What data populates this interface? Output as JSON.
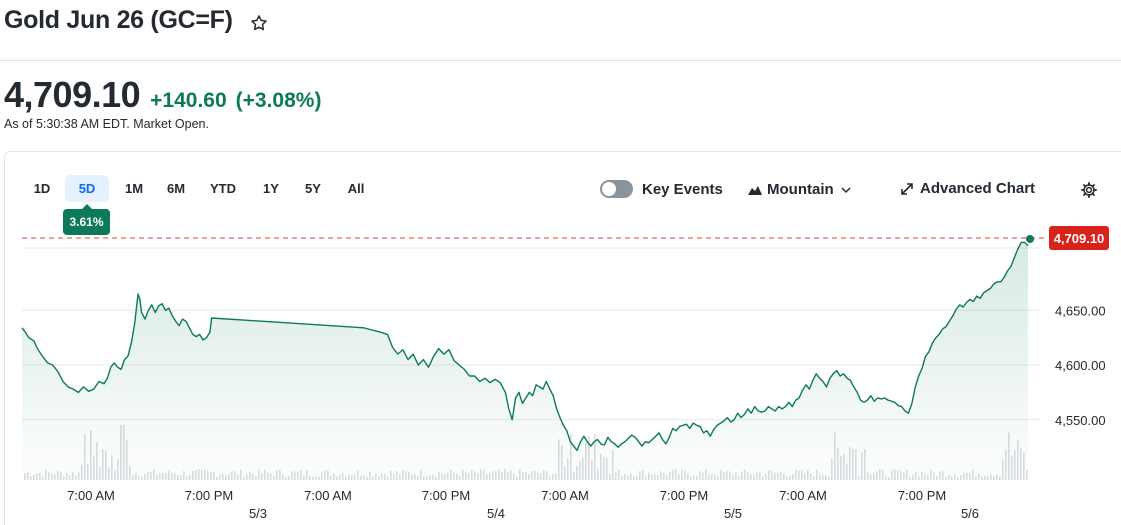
{
  "header": {
    "title": "Gold Jun 26 (GC=F)",
    "star_icon": "star-outline-icon"
  },
  "quote": {
    "price": "4,709.10",
    "change": "+140.60",
    "change_pct": "(+3.08%)",
    "as_of": "As of 5:30:38 AM EDT. Market Open.",
    "color_positive": "#0c7a5a"
  },
  "toolbar": {
    "ranges": [
      "1D",
      "5D",
      "1M",
      "6M",
      "YTD",
      "1Y",
      "5Y",
      "All"
    ],
    "active_range": "5D",
    "performance_badge": "3.61%",
    "key_events_label": "Key Events",
    "key_events_enabled": false,
    "chart_type_label": "Mountain",
    "advanced_chart_label": "Advanced Chart",
    "icons": [
      "mountain-icon",
      "chevron-down-icon",
      "expand-arrow-icon",
      "gear-icon"
    ]
  },
  "chart_data": {
    "type": "area",
    "series_color": "#0c7a5a",
    "current_price_label": "4,709.10",
    "current_price_color": "#d8231a",
    "y_ticks": [
      "4,650.00",
      "4,600.00",
      "4,550.00"
    ],
    "y_tick_values": [
      4650,
      4600,
      4550
    ],
    "ylim": [
      4495,
      4727
    ],
    "x_time_labels": [
      "7:00 AM",
      "7:00 PM",
      "7:00 AM",
      "7:00 PM",
      "7:00 AM",
      "7:00 PM",
      "7:00 AM",
      "7:00 PM"
    ],
    "x_date_labels": [
      "5/3",
      "5/4",
      "5/5",
      "5/6"
    ],
    "grid": true,
    "points": [
      [
        0,
        4634
      ],
      [
        2,
        4630
      ],
      [
        4,
        4625
      ],
      [
        7,
        4622
      ],
      [
        9,
        4615
      ],
      [
        12,
        4608
      ],
      [
        15,
        4602
      ],
      [
        18,
        4600
      ],
      [
        21,
        4594
      ],
      [
        24,
        4585
      ],
      [
        27,
        4580
      ],
      [
        30,
        4578
      ],
      [
        33,
        4575
      ],
      [
        36,
        4580
      ],
      [
        39,
        4576
      ],
      [
        42,
        4578
      ],
      [
        45,
        4585
      ],
      [
        48,
        4583
      ],
      [
        50,
        4588
      ],
      [
        52,
        4598
      ],
      [
        54,
        4602
      ],
      [
        56,
        4598
      ],
      [
        58,
        4596
      ],
      [
        60,
        4605
      ],
      [
        62,
        4608
      ],
      [
        64,
        4620
      ],
      [
        66,
        4638
      ],
      [
        67,
        4652
      ],
      [
        68,
        4665
      ],
      [
        69,
        4660
      ],
      [
        70,
        4648
      ],
      [
        72,
        4642
      ],
      [
        74,
        4650
      ],
      [
        76,
        4655
      ],
      [
        78,
        4648
      ],
      [
        80,
        4654
      ],
      [
        82,
        4656
      ],
      [
        84,
        4650
      ],
      [
        86,
        4652
      ],
      [
        88,
        4645
      ],
      [
        90,
        4640
      ],
      [
        92,
        4636
      ],
      [
        94,
        4642
      ],
      [
        96,
        4640
      ],
      [
        98,
        4634
      ],
      [
        100,
        4628
      ],
      [
        102,
        4626
      ],
      [
        104,
        4628
      ],
      [
        106,
        4623
      ],
      [
        108,
        4625
      ],
      [
        110,
        4630
      ],
      [
        111,
        4643
      ],
      [
        200,
        4634
      ],
      [
        205,
        4632
      ],
      [
        210,
        4630
      ],
      [
        214,
        4628
      ],
      [
        217,
        4616
      ],
      [
        220,
        4610
      ],
      [
        223,
        4614
      ],
      [
        226,
        4605
      ],
      [
        229,
        4610
      ],
      [
        232,
        4600
      ],
      [
        235,
        4605
      ],
      [
        238,
        4598
      ],
      [
        241,
        4608
      ],
      [
        244,
        4615
      ],
      [
        247,
        4610
      ],
      [
        250,
        4614
      ],
      [
        253,
        4604
      ],
      [
        256,
        4600
      ],
      [
        259,
        4596
      ],
      [
        262,
        4590
      ],
      [
        265,
        4590
      ],
      [
        268,
        4585
      ],
      [
        271,
        4588
      ],
      [
        274,
        4584
      ],
      [
        277,
        4587
      ],
      [
        280,
        4584
      ],
      [
        283,
        4575
      ],
      [
        285,
        4560
      ],
      [
        287,
        4550
      ],
      [
        289,
        4570
      ],
      [
        291,
        4575
      ],
      [
        293,
        4565
      ],
      [
        295,
        4570
      ],
      [
        297,
        4575
      ],
      [
        299,
        4572
      ],
      [
        301,
        4582
      ],
      [
        303,
        4580
      ],
      [
        305,
        4578
      ],
      [
        307,
        4585
      ],
      [
        309,
        4578
      ],
      [
        311,
        4572
      ],
      [
        313,
        4560
      ],
      [
        315,
        4552
      ],
      [
        317,
        4545
      ],
      [
        319,
        4540
      ],
      [
        321,
        4530
      ],
      [
        323,
        4526
      ],
      [
        325,
        4522
      ],
      [
        327,
        4530
      ],
      [
        329,
        4535
      ],
      [
        331,
        4530
      ],
      [
        333,
        4526
      ],
      [
        335,
        4530
      ],
      [
        337,
        4532
      ],
      [
        339,
        4528
      ],
      [
        341,
        4527
      ],
      [
        343,
        4534
      ],
      [
        345,
        4530
      ],
      [
        347,
        4528
      ],
      [
        349,
        4525
      ],
      [
        351,
        4528
      ],
      [
        353,
        4530
      ],
      [
        355,
        4533
      ],
      [
        357,
        4536
      ],
      [
        359,
        4534
      ],
      [
        361,
        4530
      ],
      [
        363,
        4526
      ],
      [
        365,
        4530
      ],
      [
        367,
        4529
      ],
      [
        369,
        4532
      ],
      [
        371,
        4535
      ],
      [
        373,
        4538
      ],
      [
        375,
        4532
      ],
      [
        377,
        4528
      ],
      [
        379,
        4534
      ],
      [
        381,
        4542
      ],
      [
        383,
        4540
      ],
      [
        385,
        4544
      ],
      [
        387,
        4545
      ],
      [
        389,
        4546
      ],
      [
        391,
        4542
      ],
      [
        393,
        4547
      ],
      [
        395,
        4545
      ],
      [
        397,
        4544
      ],
      [
        399,
        4538
      ],
      [
        401,
        4540
      ],
      [
        403,
        4535
      ],
      [
        405,
        4541
      ],
      [
        407,
        4545
      ],
      [
        409,
        4547
      ],
      [
        411,
        4549
      ],
      [
        413,
        4552
      ],
      [
        415,
        4548
      ],
      [
        417,
        4550
      ],
      [
        419,
        4556
      ],
      [
        421,
        4552
      ],
      [
        423,
        4555
      ],
      [
        425,
        4560
      ],
      [
        427,
        4556
      ],
      [
        429,
        4562
      ],
      [
        431,
        4558
      ],
      [
        433,
        4557
      ],
      [
        435,
        4558
      ],
      [
        437,
        4562
      ],
      [
        439,
        4560
      ],
      [
        441,
        4558
      ],
      [
        443,
        4562
      ],
      [
        445,
        4560
      ],
      [
        447,
        4562
      ],
      [
        449,
        4566
      ],
      [
        451,
        4562
      ],
      [
        453,
        4568
      ],
      [
        455,
        4570
      ],
      [
        457,
        4577
      ],
      [
        459,
        4582
      ],
      [
        461,
        4578
      ],
      [
        463,
        4586
      ],
      [
        465,
        4592
      ],
      [
        467,
        4588
      ],
      [
        469,
        4585
      ],
      [
        471,
        4580
      ],
      [
        473,
        4588
      ],
      [
        475,
        4592
      ],
      [
        477,
        4595
      ],
      [
        479,
        4590
      ],
      [
        481,
        4592
      ],
      [
        483,
        4588
      ],
      [
        485,
        4586
      ],
      [
        487,
        4580
      ],
      [
        489,
        4575
      ],
      [
        491,
        4568
      ],
      [
        493,
        4566
      ],
      [
        495,
        4568
      ],
      [
        497,
        4572
      ],
      [
        499,
        4567
      ],
      [
        501,
        4570
      ],
      [
        503,
        4569
      ],
      [
        505,
        4570
      ],
      [
        507,
        4568
      ],
      [
        509,
        4567
      ],
      [
        511,
        4566
      ],
      [
        513,
        4563
      ],
      [
        515,
        4562
      ],
      [
        517,
        4558
      ],
      [
        519,
        4556
      ],
      [
        521,
        4565
      ],
      [
        523,
        4580
      ],
      [
        525,
        4590
      ],
      [
        527,
        4597
      ],
      [
        529,
        4608
      ],
      [
        531,
        4612
      ],
      [
        533,
        4620
      ],
      [
        535,
        4625
      ],
      [
        537,
        4628
      ],
      [
        539,
        4633
      ],
      [
        541,
        4635
      ],
      [
        543,
        4640
      ],
      [
        545,
        4645
      ],
      [
        547,
        4651
      ],
      [
        549,
        4655
      ],
      [
        551,
        4653
      ],
      [
        553,
        4657
      ],
      [
        555,
        4660
      ],
      [
        557,
        4658
      ],
      [
        559,
        4663
      ],
      [
        561,
        4661
      ],
      [
        563,
        4666
      ],
      [
        565,
        4668
      ],
      [
        567,
        4670
      ],
      [
        569,
        4674
      ],
      [
        571,
        4676
      ],
      [
        573,
        4676
      ],
      [
        575,
        4680
      ],
      [
        577,
        4686
      ],
      [
        579,
        4690
      ],
      [
        581,
        4698
      ],
      [
        583,
        4706
      ],
      [
        585,
        4712
      ],
      [
        587,
        4712
      ],
      [
        589,
        4709
      ]
    ],
    "volume_bars_note": "Light grey volume spikes shown at bottom"
  }
}
